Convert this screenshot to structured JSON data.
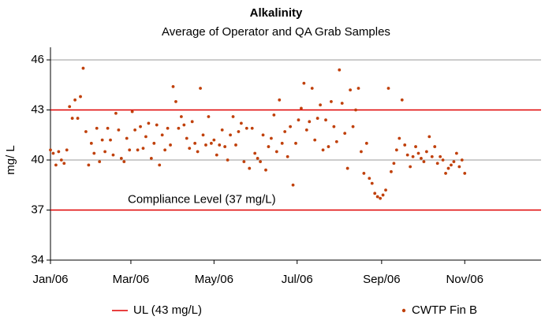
{
  "chart_data": {
    "type": "scatter",
    "title": "Alkalinity",
    "subtitle": "Average of Operator and QA Grab Samples",
    "y_label": "mg/ L",
    "xlim": [
      0,
      360
    ],
    "xticks": [
      {
        "value": 0,
        "label": "Jan/06"
      },
      {
        "value": 59,
        "label": "Mar/06"
      },
      {
        "value": 120,
        "label": "May/06"
      },
      {
        "value": 181,
        "label": "Jul/06"
      },
      {
        "value": 243,
        "label": "Sep/06"
      },
      {
        "value": 304,
        "label": "Nov/06"
      }
    ],
    "ylim": [
      34,
      46
    ],
    "yticks": [
      34,
      37,
      40,
      43,
      46
    ],
    "grid": true,
    "hlines": [
      {
        "value": 43,
        "color": "#e00000",
        "legend": "UL (43 mg/L)"
      },
      {
        "value": 37,
        "color": "#e00000",
        "annotation": "Compliance Level (37 mg/L)"
      }
    ],
    "series": [
      {
        "name": "CWTP Fin B",
        "color": "#c0400a",
        "x": [
          0,
          2,
          4,
          6,
          8,
          10,
          12,
          14,
          16,
          18,
          20,
          22,
          24,
          26,
          28,
          30,
          32,
          34,
          36,
          38,
          40,
          42,
          44,
          46,
          48,
          50,
          52,
          54,
          56,
          58,
          60,
          62,
          64,
          66,
          68,
          70,
          72,
          74,
          76,
          78,
          80,
          82,
          84,
          86,
          88,
          90,
          92,
          94,
          96,
          98,
          100,
          102,
          104,
          106,
          108,
          110,
          112,
          114,
          116,
          118,
          120,
          122,
          124,
          126,
          128,
          130,
          132,
          134,
          136,
          138,
          140,
          142,
          144,
          146,
          148,
          150,
          152,
          154,
          156,
          158,
          160,
          162,
          164,
          166,
          168,
          170,
          172,
          174,
          176,
          178,
          180,
          182,
          184,
          186,
          188,
          190,
          192,
          194,
          196,
          198,
          200,
          202,
          204,
          206,
          208,
          210,
          212,
          214,
          216,
          218,
          220,
          222,
          224,
          226,
          228,
          230,
          232,
          234,
          236,
          238,
          240,
          242,
          244,
          246,
          248,
          250,
          252,
          254,
          256,
          258,
          260,
          262,
          264,
          266,
          268,
          270,
          272,
          274,
          276,
          278,
          280,
          282,
          284,
          286,
          288,
          290,
          292,
          294,
          296,
          298,
          300,
          302,
          304
        ],
        "values": [
          40.6,
          40.4,
          39.7,
          40.5,
          40.0,
          39.8,
          40.6,
          43.2,
          42.5,
          43.6,
          42.5,
          43.8,
          45.5,
          41.7,
          39.7,
          41.0,
          40.4,
          41.9,
          39.9,
          41.2,
          40.5,
          41.9,
          41.2,
          40.3,
          42.8,
          41.8,
          40.1,
          39.9,
          41.3,
          40.6,
          42.9,
          41.8,
          40.6,
          42.0,
          40.7,
          41.4,
          42.2,
          40.1,
          41.0,
          42.1,
          39.7,
          41.5,
          40.6,
          41.9,
          40.9,
          44.4,
          43.5,
          41.9,
          42.6,
          42.1,
          41.3,
          40.7,
          42.3,
          41.0,
          40.5,
          44.3,
          41.5,
          40.9,
          42.6,
          41.0,
          41.2,
          40.3,
          40.9,
          41.8,
          40.8,
          40.0,
          41.5,
          42.6,
          40.9,
          41.7,
          42.2,
          39.9,
          41.9,
          39.5,
          41.9,
          40.4,
          40.1,
          39.9,
          41.5,
          39.4,
          40.8,
          41.3,
          42.7,
          40.5,
          43.6,
          41.0,
          41.7,
          40.2,
          42.0,
          38.5,
          41.0,
          42.4,
          43.1,
          44.6,
          41.8,
          42.3,
          44.3,
          41.2,
          42.5,
          43.3,
          40.6,
          42.4,
          40.8,
          43.5,
          42.0,
          41.1,
          45.4,
          43.4,
          41.6,
          39.5,
          44.2,
          42.0,
          43.0,
          44.3,
          40.5,
          39.2,
          41.0,
          38.9,
          38.6,
          38.0,
          37.8,
          37.7,
          37.9,
          38.2,
          44.3,
          39.3,
          39.8,
          40.6,
          41.3,
          43.6,
          40.9,
          40.3,
          39.6,
          40.2,
          40.8,
          40.4,
          40.1,
          39.9,
          40.5,
          41.4,
          40.2,
          40.8,
          39.8,
          40.2,
          40.0,
          39.2,
          39.5,
          39.7,
          39.9,
          40.4,
          39.6,
          40.0,
          39.2
        ]
      }
    ]
  }
}
